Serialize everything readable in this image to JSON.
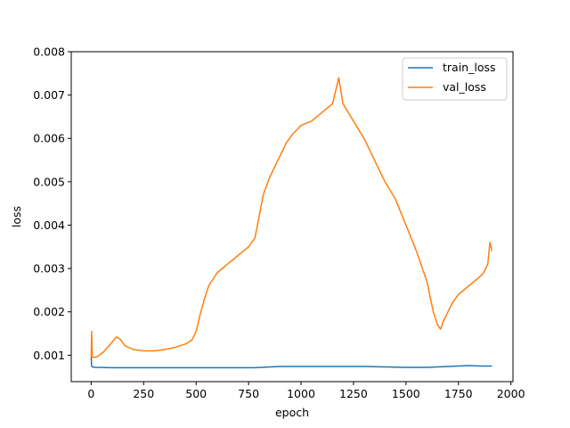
{
  "chart_data": {
    "type": "line",
    "title": "",
    "xlabel": "epoch",
    "ylabel": "loss",
    "xlim": [
      -95,
      2010
    ],
    "ylim": [
      0.00039,
      0.008
    ],
    "xticks": [
      0,
      250,
      500,
      750,
      1000,
      1250,
      1500,
      1750,
      2000
    ],
    "xtick_labels": [
      "0",
      "250",
      "500",
      "750",
      "1000",
      "1250",
      "1500",
      "1750",
      "2000"
    ],
    "yticks": [
      0.001,
      0.002,
      0.003,
      0.004,
      0.005,
      0.006,
      0.007,
      0.008
    ],
    "ytick_labels": [
      "0.001",
      "0.002",
      "0.003",
      "0.004",
      "0.005",
      "0.006",
      "0.007",
      "0.008"
    ],
    "grid": false,
    "legend": "top-right",
    "series": [
      {
        "name": "train_loss",
        "color": "#1f77b4",
        "x": [
          0,
          2,
          5,
          20,
          100,
          200,
          300,
          400,
          500,
          600,
          700,
          780,
          850,
          900,
          1000,
          1100,
          1200,
          1300,
          1400,
          1500,
          1600,
          1650,
          1700,
          1750,
          1800,
          1850,
          1900,
          1910
        ],
        "y": [
          0.00095,
          0.00075,
          0.00073,
          0.00072,
          0.00071,
          0.00071,
          0.00071,
          0.00071,
          0.00071,
          0.00071,
          0.00071,
          0.00071,
          0.00073,
          0.00074,
          0.00074,
          0.00074,
          0.00074,
          0.00074,
          0.00073,
          0.00072,
          0.00072,
          0.00073,
          0.00074,
          0.00075,
          0.00076,
          0.00075,
          0.00075,
          0.00075
        ]
      },
      {
        "name": "val_loss",
        "color": "#ff7f0e",
        "x": [
          0,
          2,
          5,
          15,
          30,
          60,
          90,
          120,
          140,
          160,
          200,
          250,
          300,
          350,
          400,
          450,
          480,
          500,
          520,
          540,
          560,
          600,
          650,
          700,
          750,
          780,
          800,
          820,
          850,
          880,
          900,
          930,
          960,
          1000,
          1050,
          1100,
          1150,
          1180,
          1200,
          1250,
          1300,
          1350,
          1400,
          1450,
          1500,
          1550,
          1600,
          1630,
          1650,
          1665,
          1680,
          1700,
          1720,
          1750,
          1800,
          1850,
          1870,
          1890,
          1900,
          1910
        ],
        "y": [
          0.00095,
          0.00155,
          0.00095,
          0.00095,
          0.00097,
          0.00108,
          0.00125,
          0.00142,
          0.00136,
          0.00122,
          0.00113,
          0.0011,
          0.0011,
          0.00113,
          0.00118,
          0.00126,
          0.00135,
          0.00155,
          0.00195,
          0.0023,
          0.0026,
          0.0029,
          0.0031,
          0.0033,
          0.0035,
          0.0037,
          0.0042,
          0.0047,
          0.0051,
          0.0054,
          0.0056,
          0.0059,
          0.0061,
          0.0063,
          0.0064,
          0.0066,
          0.0068,
          0.0074,
          0.0068,
          0.0064,
          0.006,
          0.0055,
          0.005,
          0.0046,
          0.004,
          0.0034,
          0.0027,
          0.002,
          0.0017,
          0.0016,
          0.0018,
          0.002,
          0.0022,
          0.0024,
          0.0026,
          0.0028,
          0.0029,
          0.0031,
          0.0036,
          0.0034
        ]
      }
    ]
  }
}
